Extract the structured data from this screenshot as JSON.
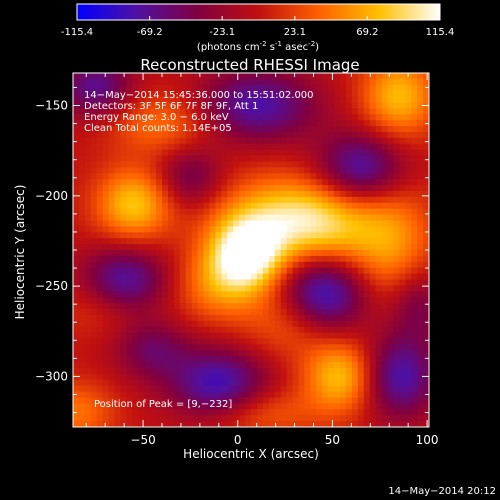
{
  "colorbar": {
    "ticks": [
      "-115.4",
      "-69.2",
      "-23.1",
      "23.1",
      "69.2",
      "115.4"
    ],
    "tick_values": [
      -115.4,
      -69.2,
      -23.1,
      23.1,
      69.2,
      115.4
    ],
    "range": [
      -115.4,
      115.4
    ],
    "unit_prefix": "(photons cm",
    "unit_exp1": "-2",
    "unit_mid": " s",
    "unit_exp2": "-1",
    "unit_mid2": " asec",
    "unit_exp3": "-2",
    "unit_suffix": ")",
    "colormap": [
      "#0000ff",
      "#5010a0",
      "#800040",
      "#c01010",
      "#ff6000",
      "#ffc000",
      "#ffffff"
    ]
  },
  "chart_data": {
    "type": "heatmap",
    "title": "Reconstructed RHESSI Image",
    "xlabel": "Heliocentric X (arcsec)",
    "ylabel": "Heliocentric Y (arcsec)",
    "xlim": [
      -87,
      101
    ],
    "ylim": [
      -328,
      -132
    ],
    "x_ticks": [
      -50,
      0,
      50,
      100
    ],
    "x_tick_labels": [
      "−50",
      "0",
      "50",
      "100"
    ],
    "y_ticks": [
      -150,
      -200,
      -250,
      -300
    ],
    "y_tick_labels": [
      "−150",
      "−200",
      "−250",
      "−300"
    ],
    "annotations": [
      "14−May−2014 15:45:36.000 to 15:51:02.000",
      "Detectors: 3F 5F 6F 7F 8F 9F, Att 1",
      "Energy Range: 3.0 − 6.0 keV",
      "Clean     Total counts: 1.14E+05"
    ],
    "peak_label": "Position of Peak = [9,−232]",
    "peak": [
      9,
      -232
    ],
    "peak_value": 115.4,
    "sources": [
      {
        "x": 5,
        "y": -232,
        "amp": 120,
        "sx": 14,
        "sy": 14
      },
      {
        "x": 25,
        "y": -210,
        "amp": 70,
        "sx": 26,
        "sy": 16
      },
      {
        "x": -10,
        "y": -250,
        "amp": 50,
        "sx": 16,
        "sy": 14
      },
      {
        "x": 45,
        "y": -220,
        "amp": 55,
        "sx": 18,
        "sy": 16
      },
      {
        "x": 80,
        "y": -225,
        "amp": 60,
        "sx": 16,
        "sy": 22
      },
      {
        "x": 55,
        "y": -300,
        "amp": 80,
        "sx": 14,
        "sy": 14
      },
      {
        "x": -55,
        "y": -205,
        "amp": 80,
        "sx": 14,
        "sy": 14
      },
      {
        "x": 30,
        "y": -270,
        "amp": 45,
        "sx": 18,
        "sy": 14
      },
      {
        "x": -65,
        "y": -260,
        "amp": 50,
        "sx": 18,
        "sy": 12
      },
      {
        "x": 85,
        "y": -145,
        "amp": 75,
        "sx": 14,
        "sy": 16
      },
      {
        "x": -40,
        "y": -160,
        "amp": 45,
        "sx": 20,
        "sy": 12
      },
      {
        "x": 10,
        "y": -320,
        "amp": 40,
        "sx": 22,
        "sy": 10
      },
      {
        "x": -85,
        "y": -320,
        "amp": 45,
        "sx": 14,
        "sy": 12
      },
      {
        "x": -60,
        "y": -250,
        "amp": -100,
        "sx": 16,
        "sy": 14
      },
      {
        "x": 45,
        "y": -255,
        "amp": -105,
        "sx": 16,
        "sy": 16
      },
      {
        "x": -10,
        "y": -305,
        "amp": -90,
        "sx": 18,
        "sy": 14
      },
      {
        "x": 85,
        "y": -300,
        "amp": -85,
        "sx": 14,
        "sy": 16
      },
      {
        "x": 10,
        "y": -150,
        "amp": -80,
        "sx": 22,
        "sy": 14
      },
      {
        "x": -75,
        "y": -140,
        "amp": -70,
        "sx": 14,
        "sy": 12
      },
      {
        "x": 65,
        "y": -185,
        "amp": -85,
        "sx": 16,
        "sy": 14
      },
      {
        "x": -25,
        "y": -190,
        "amp": -50,
        "sx": 12,
        "sy": 12
      },
      {
        "x": -45,
        "y": -285,
        "amp": -50,
        "sx": 14,
        "sy": 12
      },
      {
        "x": 95,
        "y": -260,
        "amp": -45,
        "sx": 10,
        "sy": 14
      }
    ]
  },
  "footer": {
    "timestamp": "14−May−2014 20:12"
  }
}
